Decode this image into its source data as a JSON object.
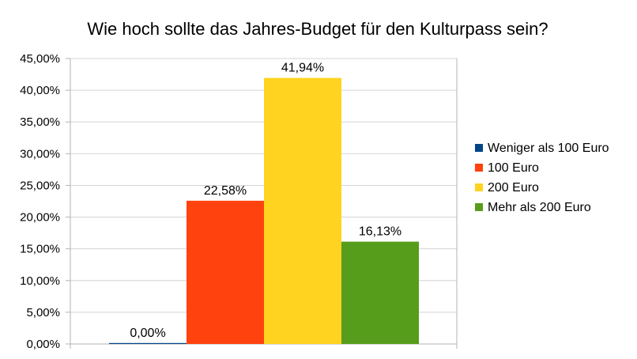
{
  "chart_data": {
    "type": "bar",
    "title": "Wie hoch sollte das Jahres-Budget für den Kulturpass sein?",
    "xlabel": "",
    "ylabel": "",
    "ylim": [
      0,
      45
    ],
    "y_ticks": [
      0,
      5,
      10,
      15,
      20,
      25,
      30,
      35,
      40,
      45
    ],
    "y_tick_labels": [
      "0,00%",
      "5,00%",
      "10,00%",
      "15,00%",
      "20,00%",
      "25,00%",
      "30,00%",
      "35,00%",
      "40,00%",
      "45,00%"
    ],
    "grid": true,
    "legend_position": "right",
    "series": [
      {
        "name": "Weniger als 100 Euro",
        "value": 0.0,
        "label": "0,00%",
        "color": "#004586"
      },
      {
        "name": "100 Euro",
        "value": 22.58,
        "label": "22,58%",
        "color": "#ff420e"
      },
      {
        "name": "200 Euro",
        "value": 41.94,
        "label": "41,94%",
        "color": "#ffd320"
      },
      {
        "name": "Mehr als 200 Euro",
        "value": 16.13,
        "label": "16,13%",
        "color": "#579d1c"
      }
    ]
  }
}
